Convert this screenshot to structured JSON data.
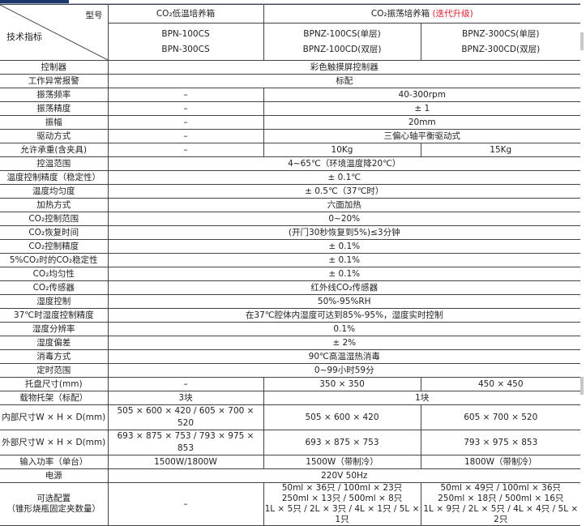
{
  "header": {
    "corner_model": "型号",
    "corner_spec": "技术指标",
    "group1": "CO₂低温培养箱",
    "group2": "CO₂振荡培养箱",
    "group2_tag": "(迭代升级)",
    "models": [
      "BPN-100CS\nBPN-300CS",
      "BPNZ-100CS(单层)\nBPNZ-100CD(双层)",
      "BPNZ-300CS(单层)\nBPNZ-300CD(双层)"
    ]
  },
  "rows": [
    {
      "label": "控制器",
      "cells": [
        {
          "text": "彩色触摸屏控制器",
          "span": 3
        }
      ]
    },
    {
      "label": "工作异常报警",
      "cells": [
        {
          "text": "标配",
          "span": 3
        }
      ]
    },
    {
      "label": "振荡频率",
      "cells": [
        {
          "text": "–",
          "span": 1
        },
        {
          "text": "40-300rpm",
          "span": 2
        }
      ]
    },
    {
      "label": "振荡精度",
      "cells": [
        {
          "text": "–",
          "span": 1
        },
        {
          "text": "± 1",
          "span": 2
        }
      ]
    },
    {
      "label": "振幅",
      "cells": [
        {
          "text": "–",
          "span": 1
        },
        {
          "text": "20mm",
          "span": 2
        }
      ]
    },
    {
      "label": "驱动方式",
      "cells": [
        {
          "text": "–",
          "span": 1
        },
        {
          "text": "三偏心轴平衡驱动式",
          "span": 2
        }
      ]
    },
    {
      "label": "允许承重(含夹具)",
      "cells": [
        {
          "text": "–",
          "span": 1
        },
        {
          "text": "10Kg",
          "span": 1
        },
        {
          "text": "15Kg",
          "span": 1
        }
      ]
    },
    {
      "label": "控温范围",
      "cells": [
        {
          "text": "4~65℃（环境温度降20℃）",
          "span": 3
        }
      ]
    },
    {
      "label": "温度控制精度（稳定性）",
      "cells": [
        {
          "text": "± 0.1℃",
          "span": 3
        }
      ]
    },
    {
      "label": "温度均匀度",
      "cells": [
        {
          "text": "± 0.5℃（37℃时）",
          "span": 3
        }
      ]
    },
    {
      "label": "加热方式",
      "cells": [
        {
          "text": "六面加热",
          "span": 3
        }
      ]
    },
    {
      "label": "CO₂控制范围",
      "cells": [
        {
          "text": "0~20%",
          "span": 3
        }
      ]
    },
    {
      "label": "CO₂恢复时间",
      "cells": [
        {
          "text": "(开门30秒恢复到5%)≤3分钟",
          "span": 3
        }
      ]
    },
    {
      "label": "CO₂控制精度",
      "cells": [
        {
          "text": "± 0.1%",
          "span": 3
        }
      ]
    },
    {
      "label": "5%CO₂时的CO₂稳定性",
      "cells": [
        {
          "text": "± 0.1%",
          "span": 3
        }
      ]
    },
    {
      "label": "CO₂均匀性",
      "cells": [
        {
          "text": "± 0.1%",
          "span": 3
        }
      ]
    },
    {
      "label": "CO₂传感器",
      "cells": [
        {
          "text": "红外线CO₂传感器",
          "span": 3
        }
      ]
    },
    {
      "label": "湿度控制",
      "cells": [
        {
          "text": "50%-95%RH",
          "span": 3
        }
      ]
    },
    {
      "label": "37℃时湿度控制精度",
      "cells": [
        {
          "text": "在37℃腔体内湿度可达到85%-95%，湿度实时控制",
          "span": 3
        }
      ]
    },
    {
      "label": "湿度分辨率",
      "cells": [
        {
          "text": "0.1%",
          "span": 3
        }
      ]
    },
    {
      "label": "湿度偏差",
      "cells": [
        {
          "text": "± 2%",
          "span": 3
        }
      ]
    },
    {
      "label": "消毒方式",
      "cells": [
        {
          "text": "90℃高温湿热消毒",
          "span": 3
        }
      ]
    },
    {
      "label": "定时范围",
      "cells": [
        {
          "text": "0~99小时59分",
          "span": 3
        }
      ]
    },
    {
      "label": "托盘尺寸(mm)",
      "cells": [
        {
          "text": "–",
          "span": 1
        },
        {
          "text": "350 × 350",
          "span": 1
        },
        {
          "text": "450 × 450",
          "span": 1
        }
      ]
    },
    {
      "label": "载物托架（标配）",
      "cells": [
        {
          "text": "3块",
          "span": 1
        },
        {
          "text": "1块",
          "span": 2
        }
      ]
    },
    {
      "label": "内部尺寸W × H × D(mm)",
      "cells": [
        {
          "text": "505 × 600 × 420 / 605 × 700 × 520",
          "span": 1
        },
        {
          "text": "505 × 600 × 420",
          "span": 1
        },
        {
          "text": "605 × 700 × 520",
          "span": 1
        }
      ]
    },
    {
      "label": "外部尺寸W × H × D(mm)",
      "cells": [
        {
          "text": "693 × 875 × 753 / 793 × 975 × 853",
          "span": 1
        },
        {
          "text": "693 × 875 × 753",
          "span": 1
        },
        {
          "text": "793 × 975 × 853",
          "span": 1
        }
      ]
    },
    {
      "label": "输入功率（单台）",
      "cells": [
        {
          "text": "1500W/1800W",
          "span": 1
        },
        {
          "text": "1500W（带制冷）",
          "span": 1
        },
        {
          "text": "1800W（带制冷）",
          "span": 1
        }
      ]
    },
    {
      "label": "电源",
      "cells": [
        {
          "text": "220V  50Hz",
          "span": 3
        }
      ]
    },
    {
      "label": "可选配置\n（锥形烧瓶固定夹数量）",
      "tall": true,
      "cells": [
        {
          "text": "–",
          "span": 1
        },
        {
          "text": "50ml × 36只 / 100ml × 23只\n250ml × 13只 / 500ml × 8只\n1L × 5只 / 2L × 3只 / 4L × 1只 / 5L × 1只",
          "span": 1
        },
        {
          "text": "50ml × 49只 / 100ml × 36只\n250ml × 18只 / 500ml × 16只\n1L × 9只 / 2L × 5只 / 4L × 4只 / 5L × 2只",
          "span": 1
        }
      ]
    }
  ]
}
